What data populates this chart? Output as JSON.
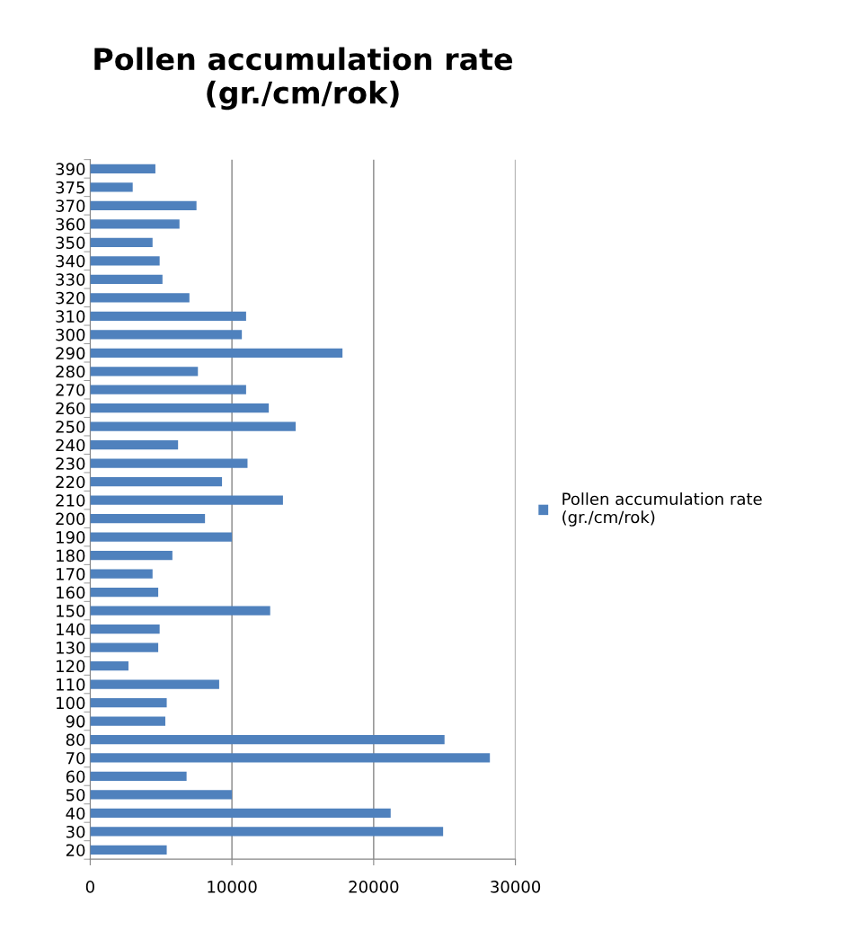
{
  "chart_data": {
    "type": "bar",
    "orientation": "horizontal",
    "title": "Pollen accumulation rate\n(gr./cm/rok)",
    "categories": [
      "390",
      "375",
      "370",
      "360",
      "350",
      "340",
      "330",
      "320",
      "310",
      "300",
      "290",
      "280",
      "270",
      "260",
      "250",
      "240",
      "230",
      "220",
      "210",
      "200",
      "190",
      "180",
      "170",
      "160",
      "150",
      "140",
      "130",
      "120",
      "110",
      "100",
      "90",
      "80",
      "70",
      "60",
      "50",
      "40",
      "30",
      "20"
    ],
    "series": [
      {
        "name": "Pollen accumulation rate\n(gr./cm/rok)",
        "color": "#4f81bd",
        "values": [
          4600,
          3000,
          7500,
          6300,
          4400,
          4900,
          5100,
          7000,
          11000,
          10700,
          17800,
          7600,
          11000,
          12600,
          14500,
          6200,
          11100,
          9300,
          13600,
          8100,
          10000,
          5800,
          4400,
          4800,
          12700,
          4900,
          4800,
          2700,
          9100,
          5400,
          5300,
          25000,
          28200,
          6800,
          10000,
          21200,
          24900,
          5400
        ]
      }
    ],
    "xlim": [
      0,
      30000
    ],
    "xticks": [
      0,
      10000,
      20000,
      30000
    ],
    "grid": "x",
    "legend": "right"
  }
}
